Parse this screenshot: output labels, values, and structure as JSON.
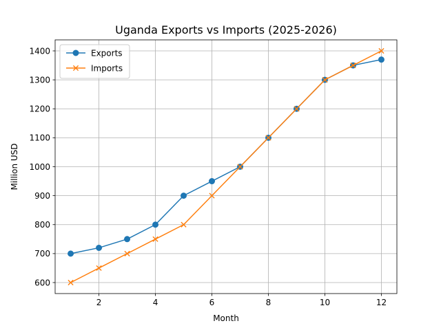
{
  "chart_data": {
    "type": "line",
    "title": "Uganda Exports vs Imports (2025-2026)",
    "xlabel": "Month",
    "ylabel": "Million USD",
    "xlim": [
      0.45,
      12.55
    ],
    "ylim": [
      562,
      1438
    ],
    "xticks": [
      2,
      4,
      6,
      8,
      10,
      12
    ],
    "yticks": [
      600,
      700,
      800,
      900,
      1000,
      1100,
      1200,
      1300,
      1400
    ],
    "grid": true,
    "legend_position": "top-left",
    "x": [
      1,
      2,
      3,
      4,
      5,
      6,
      7,
      8,
      9,
      10,
      11,
      12
    ],
    "series": [
      {
        "name": "Exports",
        "color": "#1f77b4",
        "marker": "circle",
        "values": [
          700,
          720,
          750,
          800,
          900,
          950,
          1000,
          1100,
          1200,
          1300,
          1350,
          1370
        ]
      },
      {
        "name": "Imports",
        "color": "#ff7f0e",
        "marker": "x",
        "values": [
          600,
          650,
          700,
          750,
          800,
          900,
          1000,
          1100,
          1200,
          1300,
          1350,
          1400
        ]
      }
    ]
  }
}
